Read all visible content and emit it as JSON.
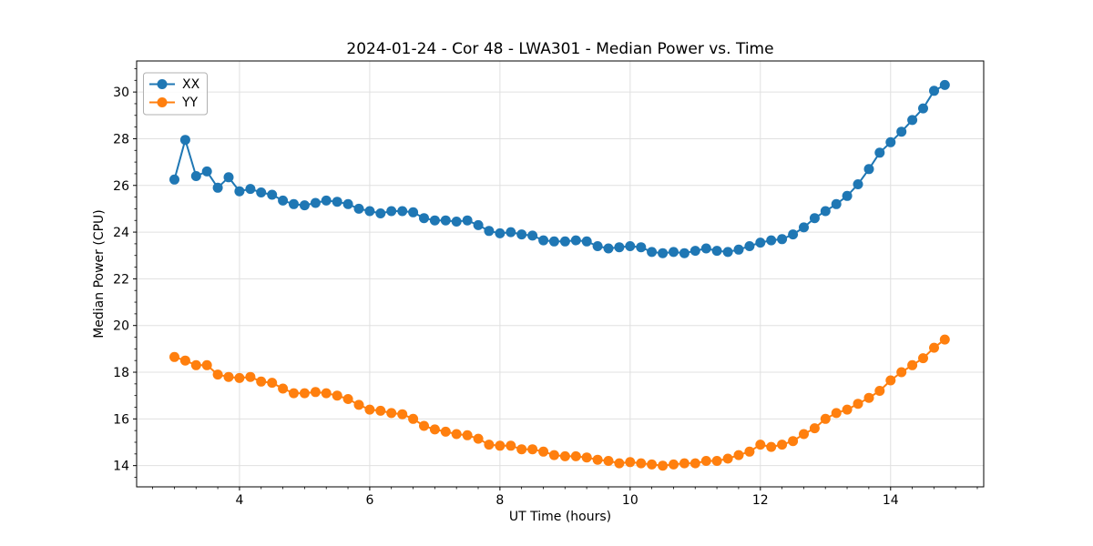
{
  "figure": {
    "background": "#ffffff",
    "plot_background": "#ffffff",
    "grid_color": "#e0e0e0",
    "spine_color": "#000000"
  },
  "chart_data": {
    "type": "line",
    "title": "2024-01-24 - Cor 48 - LWA301 - Median Power vs. Time",
    "xlabel": "UT Time (hours)",
    "ylabel": "Median Power (CPU)",
    "xlim": [
      2.42,
      15.43
    ],
    "ylim": [
      13.09,
      31.33
    ],
    "x_ticks": [
      4,
      6,
      8,
      10,
      12,
      14
    ],
    "y_ticks": [
      14,
      16,
      18,
      20,
      22,
      24,
      26,
      28,
      30
    ],
    "x_minor_step": 0.3333,
    "y_minor_step": 0.5,
    "grid": true,
    "legend_position": "upper left",
    "marker": "o",
    "x": [
      3.0,
      3.167,
      3.333,
      3.5,
      3.667,
      3.833,
      4.0,
      4.167,
      4.333,
      4.5,
      4.667,
      4.833,
      5.0,
      5.167,
      5.333,
      5.5,
      5.667,
      5.833,
      6.0,
      6.167,
      6.333,
      6.5,
      6.667,
      6.833,
      7.0,
      7.167,
      7.333,
      7.5,
      7.667,
      7.833,
      8.0,
      8.167,
      8.333,
      8.5,
      8.667,
      8.833,
      9.0,
      9.167,
      9.333,
      9.5,
      9.667,
      9.833,
      10.0,
      10.167,
      10.333,
      10.5,
      10.667,
      10.833,
      11.0,
      11.167,
      11.333,
      11.5,
      11.667,
      11.833,
      12.0,
      12.167,
      12.333,
      12.5,
      12.667,
      12.833,
      13.0,
      13.167,
      13.333,
      13.5,
      13.667,
      13.833,
      14.0,
      14.167,
      14.333,
      14.5,
      14.667,
      14.833
    ],
    "series": [
      {
        "name": "XX",
        "color": "#1f77b4",
        "values": [
          26.25,
          27.95,
          26.4,
          26.6,
          25.9,
          26.35,
          25.75,
          25.85,
          25.7,
          25.6,
          25.35,
          25.2,
          25.15,
          25.25,
          25.35,
          25.3,
          25.2,
          25.0,
          24.9,
          24.8,
          24.9,
          24.9,
          24.85,
          24.6,
          24.5,
          24.5,
          24.45,
          24.5,
          24.3,
          24.05,
          23.95,
          24.0,
          23.9,
          23.85,
          23.65,
          23.6,
          23.6,
          23.65,
          23.6,
          23.4,
          23.3,
          23.35,
          23.4,
          23.35,
          23.15,
          23.1,
          23.15,
          23.1,
          23.2,
          23.3,
          23.2,
          23.15,
          23.25,
          23.4,
          23.55,
          23.65,
          23.7,
          23.9,
          24.2,
          24.6,
          24.9,
          25.2,
          25.55,
          26.05,
          26.7,
          27.4,
          27.85,
          28.3,
          28.8,
          29.3,
          30.05,
          30.3
        ]
      },
      {
        "name": "YY",
        "color": "#ff7f0e",
        "values": [
          18.65,
          18.5,
          18.3,
          18.3,
          17.9,
          17.8,
          17.75,
          17.8,
          17.6,
          17.55,
          17.3,
          17.1,
          17.1,
          17.15,
          17.1,
          17.0,
          16.85,
          16.6,
          16.4,
          16.35,
          16.25,
          16.2,
          16.0,
          15.7,
          15.55,
          15.45,
          15.35,
          15.3,
          15.15,
          14.9,
          14.85,
          14.85,
          14.7,
          14.7,
          14.6,
          14.45,
          14.4,
          14.4,
          14.35,
          14.25,
          14.2,
          14.1,
          14.15,
          14.1,
          14.05,
          14.0,
          14.05,
          14.1,
          14.1,
          14.2,
          14.2,
          14.3,
          14.45,
          14.6,
          14.9,
          14.8,
          14.9,
          15.05,
          15.35,
          15.6,
          16.0,
          16.25,
          16.4,
          16.65,
          16.9,
          17.2,
          17.65,
          18.0,
          18.3,
          18.6,
          19.05,
          19.4
        ]
      }
    ]
  }
}
